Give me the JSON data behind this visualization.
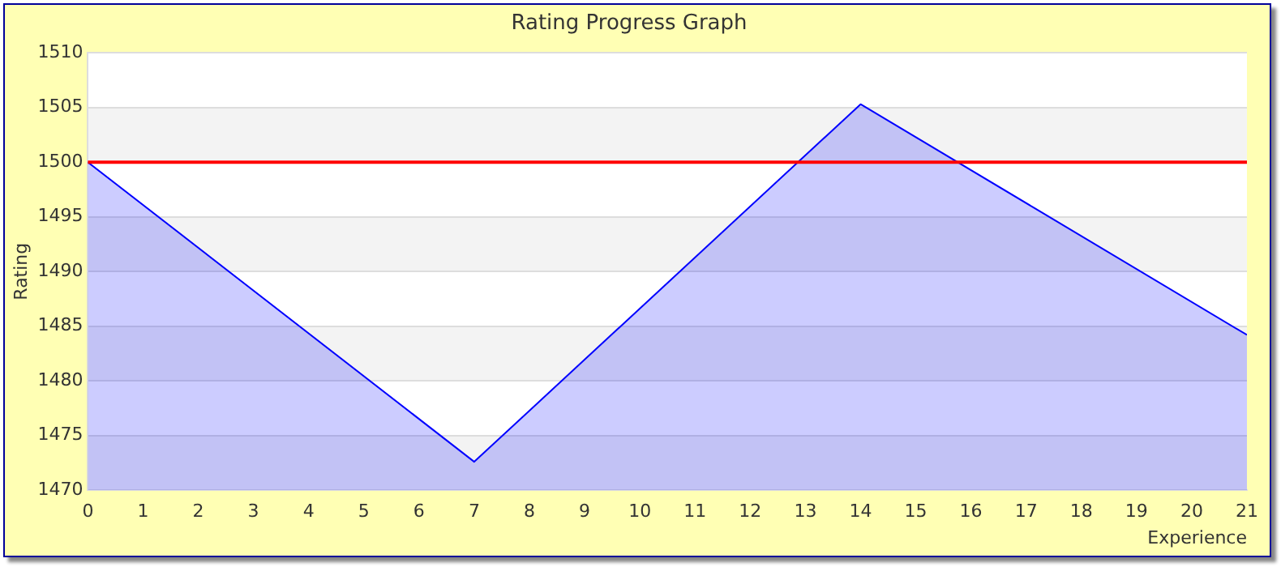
{
  "chart_data": {
    "type": "area",
    "title": "Rating Progress Graph",
    "xlabel": "Experience",
    "ylabel": "Rating",
    "x": [
      0,
      7,
      14,
      21
    ],
    "series": [
      {
        "color": "#0000ff",
        "values": [
          1500,
          1472.6,
          1505.3,
          1484.2
        ]
      }
    ],
    "xlim": [
      0,
      21
    ],
    "xticks": [
      0,
      1,
      2,
      3,
      4,
      5,
      6,
      7,
      8,
      9,
      10,
      11,
      12,
      13,
      14,
      15,
      16,
      17,
      18,
      19,
      20,
      21
    ],
    "ylim": [
      1470,
      1510
    ],
    "yticks": [
      1470,
      1475,
      1480,
      1485,
      1490,
      1495,
      1500,
      1505,
      1510
    ],
    "ref_lines": [
      {
        "axis": "y",
        "value": 1500,
        "color": "#ff0000"
      }
    ],
    "grid": "y",
    "legend": false,
    "marker": "none"
  }
}
